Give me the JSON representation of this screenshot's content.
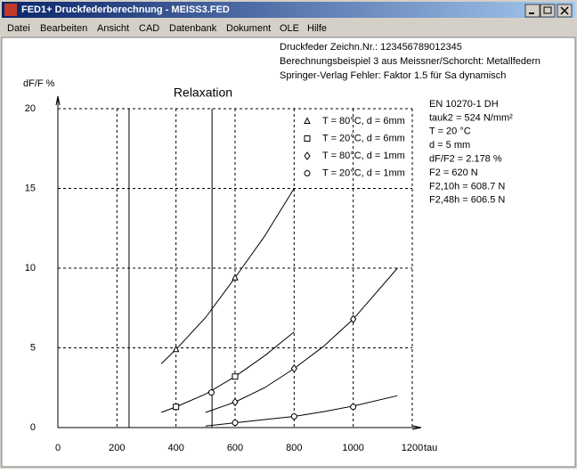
{
  "window": {
    "title": "FED1+   Druckfederberechnung  -  MEISS3.FED"
  },
  "menu": [
    "Datei",
    "Bearbeiten",
    "Ansicht",
    "CAD",
    "Datenbank",
    "Dokument",
    "OLE",
    "Hilfe"
  ],
  "header": [
    "Druckfeder  Zeichn.Nr.: 123456789012345",
    "Berechnungsbeispiel 3 aus Meissner/Schorcht: Metallfedern",
    "Springer-Verlag    Fehler: Faktor 1.5 für Sa dynamisch"
  ],
  "info": [
    "EN 10270-1 DH",
    "tauk2 = 524 N/mm²",
    "T = 20 °C",
    "d = 5 mm",
    "dF/F2 = 2.178 %",
    "F2 = 620 N",
    "F2,10h = 608.7 N",
    "F2,48h = 606.5 N"
  ],
  "chart_data": {
    "type": "line",
    "title": "Relaxation",
    "x_label": "tau",
    "y_label": "dF/F %",
    "xlim": [
      0,
      1200
    ],
    "xticks": [
      0,
      200,
      400,
      600,
      800,
      1000,
      1200
    ],
    "ylim": [
      0,
      20
    ],
    "yticks": [
      0,
      5,
      10,
      15,
      20
    ],
    "grid": true,
    "color": "#000000",
    "vlines": [
      241,
      522
    ],
    "series": [
      {
        "name": "T = 80°C,  d = 6mm",
        "marker": "triangle",
        "x": [
          400,
          600
        ],
        "values": [
          4.9,
          9.4
        ],
        "curve_x": [
          350,
          400,
          500,
          600,
          700,
          800
        ],
        "curve_values": [
          4.0,
          4.9,
          6.9,
          9.4,
          12.0,
          15.0
        ]
      },
      {
        "name": "T = 20°C,  d = 6mm",
        "marker": "square",
        "x": [
          400,
          600
        ],
        "values": [
          1.3,
          3.2
        ],
        "curve_x": [
          350,
          400,
          500,
          600,
          700,
          800
        ],
        "curve_values": [
          0.95,
          1.3,
          2.1,
          3.2,
          4.5,
          6.0
        ]
      },
      {
        "name": "T = 80°C,  d = 1mm",
        "marker": "diamond",
        "x": [
          600,
          800,
          1000
        ],
        "values": [
          1.6,
          3.7,
          6.8
        ],
        "curve_x": [
          500,
          600,
          700,
          800,
          900,
          1000,
          1150
        ],
        "curve_values": [
          0.95,
          1.6,
          2.5,
          3.7,
          5.1,
          6.8,
          10.0
        ]
      },
      {
        "name": "T = 20°C,  d = 1mm",
        "marker": "circle",
        "x": [
          520,
          600,
          800,
          1000
        ],
        "values": [
          2.2,
          0.3,
          0.7,
          1.3
        ],
        "curve_x": [
          500,
          600,
          700,
          800,
          900,
          1000,
          1150
        ],
        "curve_values": [
          0.1,
          0.3,
          0.5,
          0.7,
          1.0,
          1.35,
          2.0
        ]
      }
    ]
  }
}
